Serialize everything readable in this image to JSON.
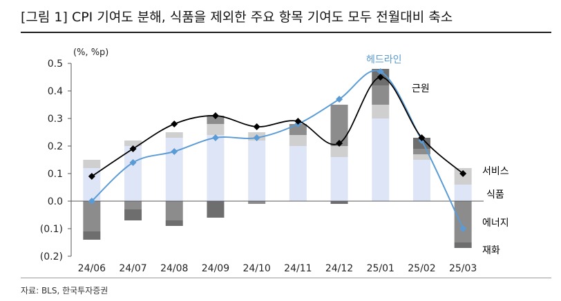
{
  "header": {
    "title": "[그림 1] CPI 기여도 분해, 식품을 제외한 주요 항목 기여도 모두 전월대비 축소"
  },
  "footer": {
    "source": "자료: BLS, 한국투자증권"
  },
  "colors": {
    "services": "#dde5f6",
    "food": "#cfcfcf",
    "energy": "#8c8c8c",
    "goods": "#6e6e6e",
    "headline": "#5b9bd5",
    "core": "#000000"
  },
  "chart_data": {
    "type": "bar",
    "stacked": true,
    "unit_label": "(%, %p)",
    "categories": [
      "24/06",
      "24/07",
      "24/08",
      "24/09",
      "24/10",
      "24/11",
      "24/12",
      "25/01",
      "25/02",
      "25/03"
    ],
    "ylim": [
      -0.2,
      0.5
    ],
    "yticks": [
      0.5,
      0.4,
      0.3,
      0.2,
      0.1,
      0.0,
      -0.1,
      -0.2
    ],
    "ytick_labels": [
      "0.5",
      "0.4",
      "0.3",
      "0.2",
      "0.1",
      "0.0",
      "(0.1)",
      "(0.2)"
    ],
    "series": [
      {
        "name": "서비스",
        "kind": "bar",
        "color_key": "services",
        "values": [
          0.12,
          0.2,
          0.23,
          0.24,
          0.22,
          0.2,
          0.16,
          0.3,
          0.15,
          0.06
        ]
      },
      {
        "name": "식품",
        "kind": "bar",
        "color_key": "food",
        "values": [
          0.03,
          0.02,
          0.02,
          0.04,
          0.03,
          0.04,
          0.04,
          0.05,
          0.02,
          0.06
        ]
      },
      {
        "name": "에너지",
        "kind": "bar",
        "color_key": "energy",
        "values": [
          -0.11,
          -0.03,
          -0.07,
          0.03,
          -0.01,
          0.04,
          0.15,
          0.07,
          0.02,
          -0.15
        ]
      },
      {
        "name": "재화",
        "kind": "bar",
        "color_key": "goods",
        "values": [
          -0.03,
          -0.04,
          -0.02,
          -0.06,
          0.0,
          0.0,
          -0.01,
          0.06,
          0.04,
          -0.02
        ]
      },
      {
        "name": "헤드라인",
        "kind": "line",
        "color_key": "headline",
        "marker": "diamond",
        "smooth": true,
        "values": [
          0.0,
          0.14,
          0.18,
          0.23,
          0.23,
          0.28,
          0.37,
          0.47,
          0.22,
          -0.1
        ]
      },
      {
        "name": "근원",
        "kind": "line",
        "color_key": "core",
        "marker": "diamond",
        "smooth": true,
        "values": [
          0.09,
          0.19,
          0.28,
          0.31,
          0.27,
          0.29,
          0.21,
          0.45,
          0.23,
          0.1
        ]
      }
    ],
    "annotations": {
      "headline": "헤드라인",
      "core": "근원",
      "services": "서비스",
      "food": "식품",
      "energy": "에너지",
      "goods": "재화"
    }
  }
}
